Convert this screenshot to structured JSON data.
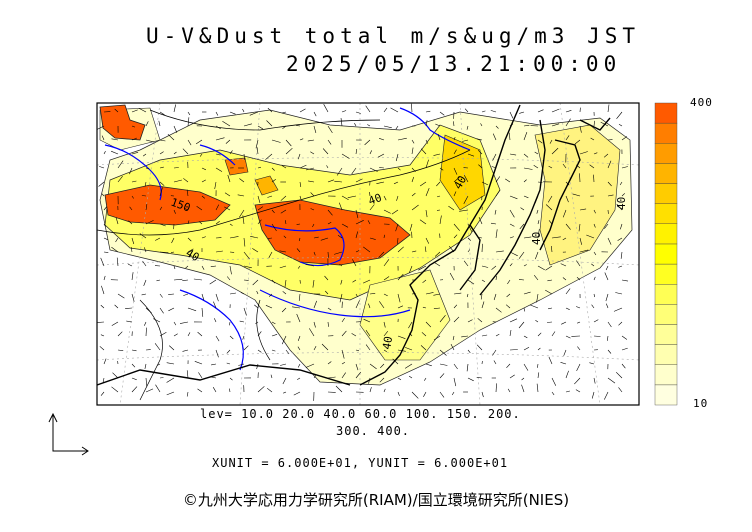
{
  "title_line1": "U-V&Dust total m/s&ug/m3 JST",
  "title_line2": "2025/05/13.21:00:00",
  "levels_line1": "lev= 10.0 20.0 40.0 60.0 100. 150. 200.",
  "levels_line2": "300. 400.",
  "unit_line": "XUNIT = 6.000E+01, YUNIT = 6.000E+01",
  "credit": "©九州大学応用力学研究所(RIAM)/国立環境研究所(NIES)",
  "colorbar": {
    "max_label": "400",
    "min_label": "10",
    "colors": [
      "#ffffe0",
      "#ffffcc",
      "#ffffb0",
      "#ffff99",
      "#ffff77",
      "#ffff55",
      "#ffff22",
      "#ffff00",
      "#fff200",
      "#ffe000",
      "#ffcc00",
      "#ffb400",
      "#ff9c00",
      "#ff7e00",
      "#ff5a00"
    ]
  },
  "contour_labels": [
    "150",
    "40",
    "40",
    "40",
    "40",
    "40",
    "40"
  ],
  "colors": {
    "coast": "#000000",
    "river": "#0000ff",
    "grid": "#bbbbbb",
    "dust_high": "#ff5a00",
    "dust_mid": "#ffcc00",
    "dust_low": "#ffff99"
  }
}
